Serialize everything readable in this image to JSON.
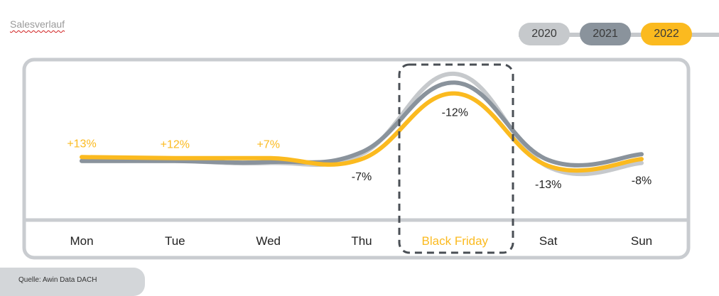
{
  "title": "Salesverlauf",
  "source": "Quelle: Awin Data DACH",
  "legend": [
    {
      "label": "2020",
      "color": "#c6c9cc"
    },
    {
      "label": "2021",
      "color": "#8a939c"
    },
    {
      "label": "2022",
      "color": "#fbba1f"
    }
  ],
  "chart_data": {
    "type": "line",
    "categories": [
      "Mon",
      "Tue",
      "Wed",
      "Thu",
      "Black Friday",
      "Sat",
      "Sun"
    ],
    "highlight_category": "Black Friday",
    "ylim": [
      0,
      100
    ],
    "series": [
      {
        "name": "2020",
        "color": "#c6c9cc",
        "values": [
          11,
          11,
          9,
          18,
          100,
          5,
          9
        ]
      },
      {
        "name": "2021",
        "color": "#8a939c",
        "values": [
          11,
          11,
          10,
          20,
          91,
          12,
          18
        ]
      },
      {
        "name": "2022",
        "color": "#fbba1f",
        "values": [
          15,
          14,
          14,
          13,
          80,
          6,
          13
        ]
      }
    ],
    "annotations": [
      {
        "category": "Mon",
        "text": "+13%",
        "color": "#fbba1f",
        "position": "above"
      },
      {
        "category": "Tue",
        "text": "+12%",
        "color": "#fbba1f",
        "position": "above"
      },
      {
        "category": "Wed",
        "text": "+7%",
        "color": "#fbba1f",
        "position": "above"
      },
      {
        "category": "Thu",
        "text": "-7%",
        "color": "#222222",
        "position": "below"
      },
      {
        "category": "Black Friday",
        "text": "-12%",
        "color": "#222222",
        "position": "below"
      },
      {
        "category": "Sat",
        "text": "-13%",
        "color": "#222222",
        "position": "below"
      },
      {
        "category": "Sun",
        "text": "-8%",
        "color": "#222222",
        "position": "below"
      }
    ]
  }
}
